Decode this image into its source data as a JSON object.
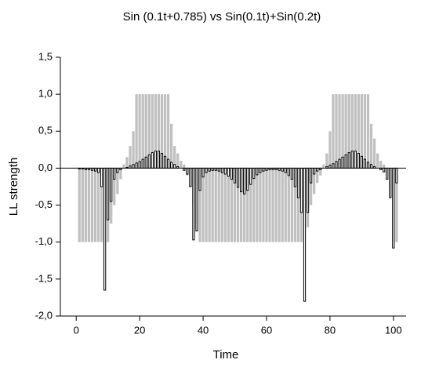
{
  "chart_data": {
    "type": "bar",
    "title": "Sin (0.1t+0.785) vs Sin(0.1t)+Sin(0.2t)",
    "x_label": "Time",
    "y_label": "LL strength",
    "x": [
      1,
      2,
      3,
      4,
      5,
      6,
      7,
      8,
      9,
      10,
      11,
      12,
      13,
      14,
      15,
      16,
      17,
      18,
      19,
      20,
      21,
      22,
      23,
      24,
      25,
      26,
      27,
      28,
      29,
      30,
      31,
      32,
      33,
      34,
      35,
      36,
      37,
      38,
      39,
      40,
      41,
      42,
      43,
      44,
      45,
      46,
      47,
      48,
      49,
      50,
      51,
      52,
      53,
      54,
      55,
      56,
      57,
      58,
      59,
      60,
      61,
      62,
      63,
      64,
      65,
      66,
      67,
      68,
      69,
      70,
      71,
      72,
      73,
      74,
      75,
      76,
      77,
      78,
      79,
      80,
      81,
      82,
      83,
      84,
      85,
      86,
      87,
      88,
      89,
      90,
      91,
      92,
      93,
      94,
      95,
      96,
      97,
      98,
      99,
      100,
      101
    ],
    "series": [
      {
        "color": "#c0c0c0",
        "values": [
          -1,
          -1,
          -1,
          -1,
          -1,
          -1,
          -1,
          -1,
          -1,
          -1,
          -0.75,
          -0.5,
          -0.35,
          -0.15,
          0.05,
          0.15,
          0.3,
          0.5,
          1,
          1,
          1,
          1,
          1,
          1,
          1,
          1,
          1,
          1,
          1,
          0.6,
          0.3,
          0.2,
          0.1,
          0.05,
          -0.1,
          -0.25,
          -0.5,
          -0.75,
          -1,
          -1,
          -1,
          -1,
          -1,
          -1,
          -1,
          -1,
          -1,
          -1,
          -1,
          -1,
          -1,
          -1,
          -1,
          -1,
          -1,
          -1,
          -1,
          -1,
          -1,
          -1,
          -1,
          -1,
          -1,
          -1,
          -1,
          -1,
          -1,
          -1,
          -1,
          -1,
          -1,
          -1,
          -0.8,
          -0.5,
          -0.35,
          -0.2,
          -0.1,
          0.05,
          0.2,
          0.5,
          1,
          1,
          1,
          1,
          1,
          1,
          1,
          1,
          1,
          1,
          1,
          1,
          0.6,
          0.4,
          0.2,
          0.1,
          0.05,
          -0.15,
          -0.3,
          -1,
          -1
        ]
      },
      {
        "color": "#000000",
        "values": [
          -0.01,
          -0.01,
          -0.02,
          -0.02,
          -0.03,
          -0.04,
          -0.06,
          -0.25,
          -1.65,
          -0.7,
          -0.45,
          -0.15,
          -0.06,
          -0.02,
          0,
          0.01,
          0.03,
          0.05,
          0.07,
          0.09,
          0.12,
          0.15,
          0.18,
          0.21,
          0.23,
          0.23,
          0.2,
          0.16,
          0.12,
          0.08,
          0.05,
          0.02,
          0,
          -0.03,
          -0.08,
          -0.25,
          -0.97,
          -0.85,
          -0.3,
          -0.12,
          -0.06,
          -0.04,
          -0.03,
          -0.03,
          -0.04,
          -0.06,
          -0.08,
          -0.11,
          -0.15,
          -0.2,
          -0.26,
          -0.32,
          -0.35,
          -0.3,
          -0.22,
          -0.14,
          -0.09,
          -0.06,
          -0.04,
          -0.03,
          -0.02,
          -0.02,
          -0.02,
          -0.03,
          -0.04,
          -0.06,
          -0.1,
          -0.15,
          -0.25,
          -0.4,
          -0.6,
          -1.8,
          -0.6,
          -0.2,
          -0.08,
          -0.04,
          -0.02,
          0,
          0.02,
          0.04,
          0.06,
          0.09,
          0.12,
          0.15,
          0.18,
          0.21,
          0.23,
          0.23,
          0.2,
          0.16,
          0.12,
          0.08,
          0.05,
          0.02,
          0,
          -0.02,
          -0.05,
          -0.15,
          -0.4,
          -1.08,
          -0.2
        ]
      }
    ],
    "xlim": [
      -5,
      104
    ],
    "xticks": [
      0,
      20,
      40,
      60,
      80,
      100
    ],
    "ylim": [
      -2,
      1.5
    ],
    "yticks": [
      {
        "value": -2,
        "label": "-2,0"
      },
      {
        "value": -1.5,
        "label": "-1,5"
      },
      {
        "value": -1,
        "label": "-1,0"
      },
      {
        "value": -0.5,
        "label": "-0,5"
      },
      {
        "value": 0,
        "label": "0,0"
      },
      {
        "value": 0.5,
        "label": "0,5"
      },
      {
        "value": 1,
        "label": "1,0"
      },
      {
        "value": 1.5,
        "label": "1,5"
      }
    ]
  }
}
